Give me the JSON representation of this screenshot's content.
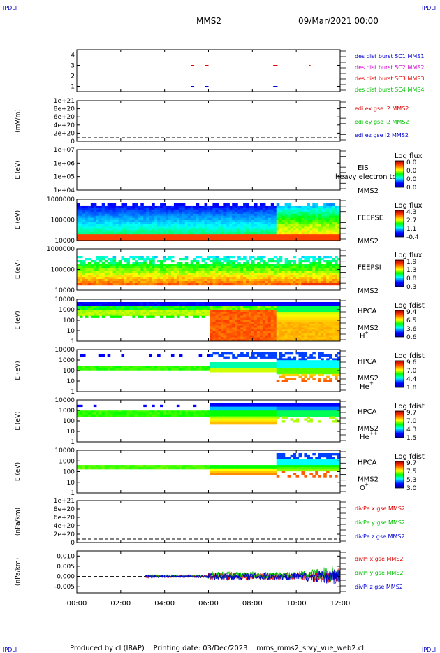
{
  "corner_label": "IPDLI",
  "header": {
    "title": "MMS2",
    "datetime": "09/Mar/2021 00:00"
  },
  "footer": {
    "text": "Produced by cl (IRAP)    Printing date: 03/Dec/2023    mms_mms2_srvy_vue_web2.cl"
  },
  "x_ticks": [
    "00:00",
    "02:00",
    "04:00",
    "06:00",
    "08:00",
    "10:00",
    "12:00"
  ],
  "colors": {
    "blue": "#0000d0",
    "magenta": "#d000d0",
    "red": "#e00000",
    "green": "#00c000"
  },
  "chart_data": [
    {
      "type": "scatter",
      "id": "burst",
      "ylim": [
        0.5,
        4.5
      ],
      "yticks": [
        "1",
        "2",
        "3",
        "4"
      ],
      "legend": [
        {
          "text": "des dist burst SC1 MMS1",
          "color": "#0000d0"
        },
        {
          "text": "des dist burst SC2 MMS2",
          "color": "#d000d0"
        },
        {
          "text": "des dist burst SC3 MMS3",
          "color": "#e00000"
        },
        {
          "text": "des dist burst SC4 MMS4",
          "color": "#00c000"
        }
      ],
      "intervals_hours": [
        [
          5.2,
          5.35
        ],
        [
          5.85,
          6.0
        ],
        [
          8.95,
          9.15
        ],
        [
          10.6,
          10.65
        ]
      ]
    },
    {
      "type": "line",
      "id": "edi",
      "ylabel": "(mV/m)",
      "yticks": [
        "0",
        "2e+20",
        "4e+20",
        "6e+20",
        "8e+20",
        "1e+21"
      ],
      "legend": [
        {
          "text": "edi ex gse l2 MMS2",
          "color": "#e00000"
        },
        {
          "text": "edi ey gse l2 MMS2",
          "color": "#00c000"
        },
        {
          "text": "edi ez gse l2 MMS2",
          "color": "#0000d0"
        }
      ]
    },
    {
      "type": "heatmap",
      "id": "eis",
      "ylabel": "E (eV)",
      "yticks": [
        "1e+04",
        "1e+05",
        "1e+06",
        "1e+07"
      ],
      "instrument": "EIS",
      "subtitle": "heavy electron tof",
      "sc": "MMS2",
      "cbar_title": "Log flux",
      "cbar_ticks": [
        "0.0",
        "0.0",
        "0.0",
        "0.0"
      ]
    },
    {
      "type": "heatmap",
      "id": "feepse",
      "ylabel": "E (eV)",
      "yticks": [
        "10000",
        "100000",
        "1000000"
      ],
      "instrument": "FEEPSE",
      "sc": "MMS2",
      "cbar_title": "Log flux",
      "cbar_ticks": [
        "4.3",
        "2.7",
        "1.1",
        "-0.4"
      ]
    },
    {
      "type": "heatmap",
      "id": "feepsi",
      "ylabel": "E (eV)",
      "yticks": [
        "10000",
        "100000",
        "1000000"
      ],
      "instrument": "FEEPSI",
      "sc": "MMS2",
      "cbar_title": "Log flux",
      "cbar_ticks": [
        "1.9",
        "1.3",
        "0.8",
        "0.3"
      ]
    },
    {
      "type": "heatmap",
      "id": "hpca_h",
      "ylabel": "E (eV)",
      "yticks": [
        "1",
        "10",
        "100",
        "1000",
        "10000"
      ],
      "instrument": "HPCA",
      "sc": "MMS2",
      "species": "H",
      "species_sup": "+",
      "cbar_title": "Log fdist",
      "cbar_ticks": [
        "9.4",
        "6.5",
        "3.6",
        "0.6"
      ]
    },
    {
      "type": "heatmap",
      "id": "hpca_he",
      "ylabel": "E (eV)",
      "yticks": [
        "1",
        "10",
        "100",
        "1000",
        "10000"
      ],
      "instrument": "HPCA",
      "sc": "MMS2",
      "species": "He",
      "species_sup": "+",
      "cbar_title": "Log fdist",
      "cbar_ticks": [
        "9.6",
        "7.0",
        "4.4",
        "1.8"
      ]
    },
    {
      "type": "heatmap",
      "id": "hpca_hepp",
      "ylabel": "E (eV)",
      "yticks": [
        "1",
        "10",
        "100",
        "1000",
        "10000"
      ],
      "instrument": "HPCA",
      "sc": "MMS2",
      "species": "He",
      "species_sup": "++",
      "cbar_title": "Log fdist",
      "cbar_ticks": [
        "9.7",
        "7.0",
        "4.3",
        "1.5"
      ]
    },
    {
      "type": "heatmap",
      "id": "hpca_o",
      "ylabel": "E (eV)",
      "yticks": [
        "1",
        "10",
        "100",
        "1000",
        "10000"
      ],
      "instrument": "HPCA",
      "sc": "MMS2",
      "species": "O",
      "species_sup": "+",
      "cbar_title": "Log fdist",
      "cbar_ticks": [
        "9.7",
        "7.5",
        "5.3",
        "3.0"
      ]
    },
    {
      "type": "line",
      "id": "divpe",
      "ylabel": "(nPa/km)",
      "yticks": [
        "0",
        "2e+20",
        "4e+20",
        "6e+20",
        "8e+20",
        "1e+21"
      ],
      "legend": [
        {
          "text": "divPe x gse MMS2",
          "color": "#e00000"
        },
        {
          "text": "divPe y gse MMS2",
          "color": "#00c000"
        },
        {
          "text": "divPe z gse MMS2",
          "color": "#0000d0"
        }
      ]
    },
    {
      "type": "line",
      "id": "divpi",
      "ylabel": "(nPa/km)",
      "yticks": [
        "-0.005",
        "0.000",
        "0.005",
        "0.010"
      ],
      "ylim": [
        -0.008,
        0.0125
      ],
      "legend": [
        {
          "text": "divPi x gse MMS2",
          "color": "#e00000"
        },
        {
          "text": "divPi y gse MMS2",
          "color": "#00c000"
        },
        {
          "text": "divPi z gse MMS2",
          "color": "#0000d0"
        }
      ]
    }
  ]
}
